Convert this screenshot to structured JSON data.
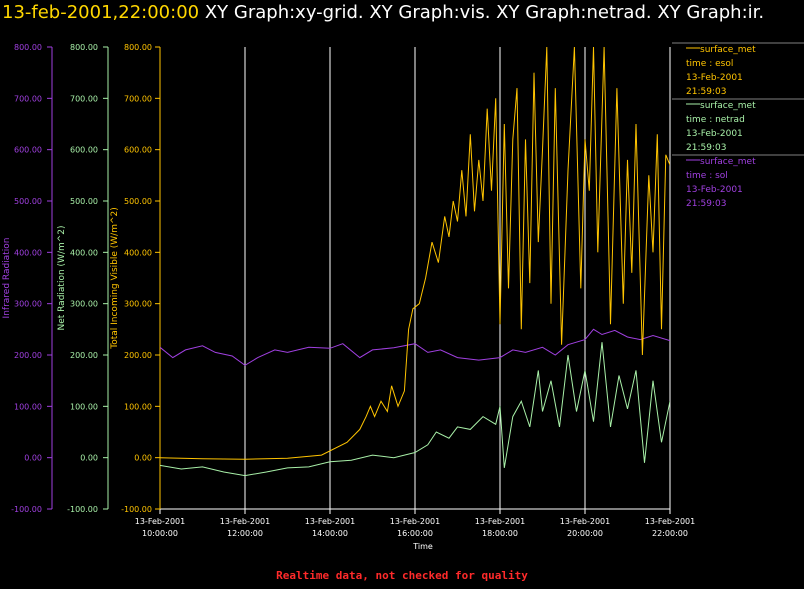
{
  "header": {
    "timestamp": "13-feb-2001,22:00:00",
    "graphs": "XY Graph:xy-grid.  XY Graph:vis.  XY Graph:netrad.  XY Graph:ir."
  },
  "footer": {
    "notice": "Realtime data, not checked for quality"
  },
  "colors": {
    "background": "#000000",
    "grid": "#ffffff",
    "solar": "#ffc400",
    "netrad": "#a8f0a8",
    "infrared": "#a040e0",
    "footer": "#ff2a2a"
  },
  "chart_data": {
    "type": "line",
    "xlabel": "Time",
    "x_ticks": [
      {
        "date": "13-Feb-2001",
        "time": "10:00:00"
      },
      {
        "date": "13-Feb-2001",
        "time": "12:00:00"
      },
      {
        "date": "13-Feb-2001",
        "time": "14:00:00"
      },
      {
        "date": "13-Feb-2001",
        "time": "16:00:00"
      },
      {
        "date": "13-Feb-2001",
        "time": "18:00:00"
      },
      {
        "date": "13-Feb-2001",
        "time": "20:00:00"
      },
      {
        "date": "13-Feb-2001",
        "time": "22:00:00"
      }
    ],
    "x_hours": [
      10,
      22
    ],
    "y_ticks": [
      "800.00",
      "700.00",
      "600.00",
      "500.00",
      "400.00",
      "300.00",
      "200.00",
      "100.00",
      "0.00",
      "-100.00"
    ],
    "y_range": [
      -100,
      800
    ],
    "axes": [
      {
        "label": "Infrared Radiation",
        "color": "#a040e0"
      },
      {
        "label": "Net Radiation (W/m^2)",
        "color": "#a8f0a8"
      },
      {
        "label": "Total Incoming Visible (W/m^2)",
        "color": "#ffc400"
      }
    ],
    "legend": [
      {
        "line": "surface_met",
        "var": "time : esol",
        "date": "13-Feb-2001",
        "time": "21:59:03",
        "color": "#ffc400"
      },
      {
        "line": "surface_met",
        "var": "time : netrad",
        "date": "13-Feb-2001",
        "time": "21:59:03",
        "color": "#a8f0a8"
      },
      {
        "line": "surface_met",
        "var": "time : sol",
        "date": "13-Feb-2001",
        "time": "21:59:03",
        "color": "#a040e0"
      }
    ],
    "series": [
      {
        "name": "time : esol",
        "color": "#ffc400",
        "points": [
          [
            10.0,
            0
          ],
          [
            11.0,
            -2
          ],
          [
            12.0,
            -3
          ],
          [
            13.0,
            -1
          ],
          [
            13.8,
            5
          ],
          [
            14.4,
            30
          ],
          [
            14.7,
            55
          ],
          [
            14.85,
            80
          ],
          [
            14.95,
            100
          ],
          [
            15.05,
            80
          ],
          [
            15.2,
            110
          ],
          [
            15.35,
            90
          ],
          [
            15.45,
            140
          ],
          [
            15.6,
            100
          ],
          [
            15.75,
            130
          ],
          [
            15.85,
            250
          ],
          [
            15.95,
            290
          ],
          [
            16.1,
            300
          ],
          [
            16.25,
            350
          ],
          [
            16.4,
            420
          ],
          [
            16.55,
            380
          ],
          [
            16.7,
            470
          ],
          [
            16.8,
            430
          ],
          [
            16.9,
            500
          ],
          [
            17.0,
            460
          ],
          [
            17.1,
            560
          ],
          [
            17.2,
            470
          ],
          [
            17.3,
            630
          ],
          [
            17.4,
            480
          ],
          [
            17.5,
            580
          ],
          [
            17.6,
            500
          ],
          [
            17.7,
            680
          ],
          [
            17.8,
            520
          ],
          [
            17.9,
            700
          ],
          [
            18.0,
            260
          ],
          [
            18.1,
            650
          ],
          [
            18.2,
            330
          ],
          [
            18.3,
            620
          ],
          [
            18.4,
            720
          ],
          [
            18.5,
            250
          ],
          [
            18.6,
            620
          ],
          [
            18.7,
            340
          ],
          [
            18.8,
            750
          ],
          [
            18.9,
            420
          ],
          [
            19.0,
            600
          ],
          [
            19.1,
            800
          ],
          [
            19.2,
            300
          ],
          [
            19.3,
            720
          ],
          [
            19.45,
            220
          ],
          [
            19.6,
            560
          ],
          [
            19.75,
            800
          ],
          [
            19.9,
            330
          ],
          [
            20.0,
            620
          ],
          [
            20.1,
            520
          ],
          [
            20.2,
            800
          ],
          [
            20.3,
            400
          ],
          [
            20.45,
            800
          ],
          [
            20.6,
            260
          ],
          [
            20.75,
            720
          ],
          [
            20.9,
            300
          ],
          [
            21.0,
            580
          ],
          [
            21.1,
            360
          ],
          [
            21.2,
            650
          ],
          [
            21.35,
            200
          ],
          [
            21.5,
            550
          ],
          [
            21.6,
            400
          ],
          [
            21.7,
            630
          ],
          [
            21.8,
            250
          ],
          [
            21.9,
            590
          ],
          [
            22.0,
            570
          ]
        ]
      },
      {
        "name": "time : netrad",
        "color": "#a8f0a8",
        "points": [
          [
            10.0,
            -15
          ],
          [
            10.5,
            -22
          ],
          [
            11.0,
            -18
          ],
          [
            11.5,
            -28
          ],
          [
            12.0,
            -35
          ],
          [
            12.5,
            -28
          ],
          [
            13.0,
            -20
          ],
          [
            13.5,
            -18
          ],
          [
            14.0,
            -8
          ],
          [
            14.5,
            -5
          ],
          [
            15.0,
            5
          ],
          [
            15.5,
            0
          ],
          [
            16.0,
            10
          ],
          [
            16.3,
            25
          ],
          [
            16.5,
            50
          ],
          [
            16.8,
            38
          ],
          [
            17.0,
            60
          ],
          [
            17.3,
            55
          ],
          [
            17.6,
            80
          ],
          [
            17.9,
            65
          ],
          [
            18.0,
            100
          ],
          [
            18.1,
            -20
          ],
          [
            18.3,
            80
          ],
          [
            18.5,
            110
          ],
          [
            18.7,
            60
          ],
          [
            18.9,
            170
          ],
          [
            19.0,
            90
          ],
          [
            19.2,
            150
          ],
          [
            19.4,
            60
          ],
          [
            19.6,
            200
          ],
          [
            19.8,
            90
          ],
          [
            20.0,
            170
          ],
          [
            20.2,
            70
          ],
          [
            20.4,
            225
          ],
          [
            20.6,
            60
          ],
          [
            20.8,
            160
          ],
          [
            21.0,
            95
          ],
          [
            21.2,
            170
          ],
          [
            21.4,
            -10
          ],
          [
            21.6,
            150
          ],
          [
            21.8,
            30
          ],
          [
            22.0,
            110
          ]
        ]
      },
      {
        "name": "time : sol",
        "color": "#a040e0",
        "points": [
          [
            10.0,
            215
          ],
          [
            10.3,
            195
          ],
          [
            10.6,
            210
          ],
          [
            11.0,
            218
          ],
          [
            11.3,
            205
          ],
          [
            11.7,
            198
          ],
          [
            12.0,
            180
          ],
          [
            12.3,
            195
          ],
          [
            12.7,
            210
          ],
          [
            13.0,
            205
          ],
          [
            13.5,
            215
          ],
          [
            14.0,
            213
          ],
          [
            14.3,
            222
          ],
          [
            14.7,
            195
          ],
          [
            15.0,
            210
          ],
          [
            15.5,
            214
          ],
          [
            16.0,
            222
          ],
          [
            16.3,
            205
          ],
          [
            16.6,
            210
          ],
          [
            17.0,
            195
          ],
          [
            17.5,
            190
          ],
          [
            18.0,
            195
          ],
          [
            18.3,
            210
          ],
          [
            18.6,
            205
          ],
          [
            19.0,
            215
          ],
          [
            19.3,
            200
          ],
          [
            19.6,
            220
          ],
          [
            20.0,
            230
          ],
          [
            20.2,
            250
          ],
          [
            20.4,
            240
          ],
          [
            20.7,
            248
          ],
          [
            21.0,
            235
          ],
          [
            21.3,
            230
          ],
          [
            21.6,
            238
          ],
          [
            22.0,
            228
          ]
        ]
      }
    ]
  }
}
